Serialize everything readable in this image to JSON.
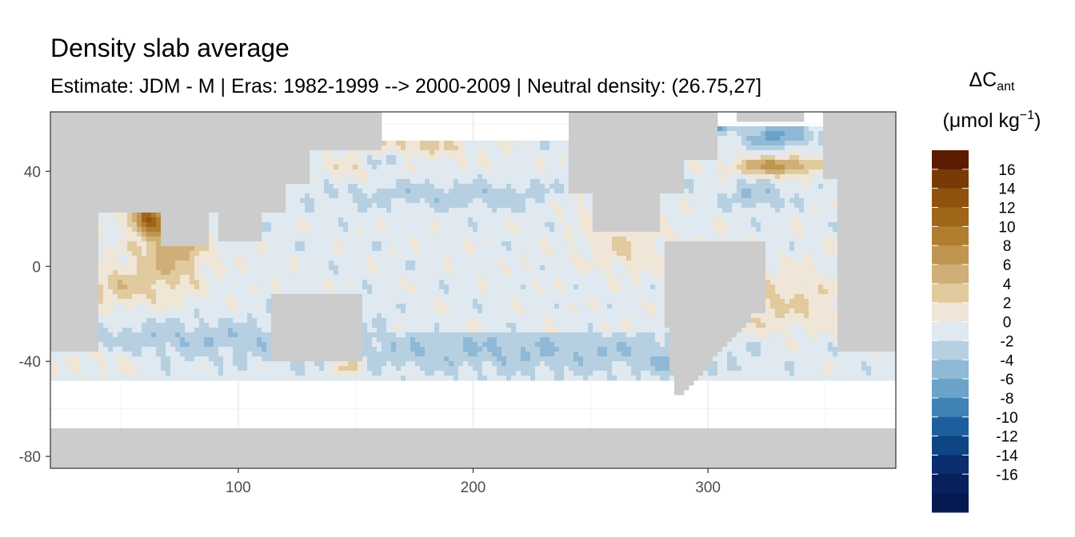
{
  "chart_data": {
    "type": "heatmap",
    "title": "Density slab average",
    "subtitle": "Estimate: JDM - M | Eras: 1982-1999 --> 2000-2009 | Neutral density: (26.75,27]",
    "xlim": [
      20,
      380
    ],
    "ylim": [
      -85,
      65
    ],
    "x_ticks": [
      100,
      200,
      300
    ],
    "y_ticks": [
      40,
      0,
      -40,
      -80
    ],
    "x_tick_labels": [
      "100",
      "200",
      "300"
    ],
    "y_tick_labels": [
      "40",
      "0",
      "-40",
      "-80"
    ],
    "grid": true,
    "land_color": "#cccccc",
    "legend": {
      "title_main": "ΔC",
      "title_sub": "ant",
      "units_open": "(μmol kg",
      "units_sup": "−1",
      "units_close": ")",
      "placement": "right",
      "breaks": [
        16,
        14,
        12,
        10,
        8,
        6,
        4,
        2,
        0,
        -2,
        -4,
        -6,
        -8,
        -10,
        -12,
        -14,
        -16
      ],
      "break_labels": [
        "16",
        "14",
        "12",
        "10",
        "8",
        "6",
        "4",
        "2",
        "0",
        "-2",
        "-4",
        "-6",
        "-8",
        "-10",
        "-12",
        "-14",
        "-16"
      ],
      "colors": [
        "#5c1c02",
        "#7a3a08",
        "#8f520e",
        "#9e6616",
        "#b07e2e",
        "#bf9550",
        "#cfaf77",
        "#e0ca9e",
        "#efe6d8",
        "#dfe9ef",
        "#b6d0e2",
        "#8fb9d6",
        "#6aa2c9",
        "#3f82b5",
        "#1d5f9c",
        "#0e4585",
        "#0a2e6e",
        "#08215e",
        "#061a52"
      ]
    },
    "values_description": "ΔCant (μmol kg−1) per grid cell, range about -16 to 16"
  }
}
